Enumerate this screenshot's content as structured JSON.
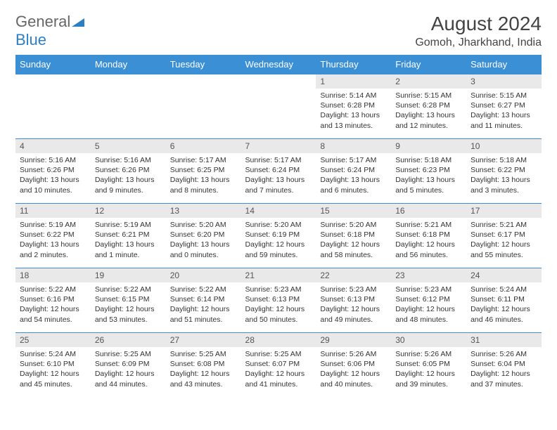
{
  "logo": {
    "text1": "General",
    "text2": "Blue"
  },
  "title": "August 2024",
  "location": "Gomoh, Jharkhand, India",
  "colors": {
    "header_bg": "#3b8fd4",
    "header_text": "#ffffff",
    "daynum_bg": "#e9e9e9",
    "border": "#3b8fd4",
    "logo_gray": "#666666",
    "logo_blue": "#2d7fc4"
  },
  "weekdays": [
    "Sunday",
    "Monday",
    "Tuesday",
    "Wednesday",
    "Thursday",
    "Friday",
    "Saturday"
  ],
  "font": {
    "title_size": 28,
    "location_size": 16,
    "header_size": 13,
    "cell_size": 10.5
  },
  "weeks": [
    [
      null,
      null,
      null,
      null,
      {
        "n": "1",
        "sr": "Sunrise: 5:14 AM",
        "ss": "Sunset: 6:28 PM",
        "dl": "Daylight: 13 hours and 13 minutes."
      },
      {
        "n": "2",
        "sr": "Sunrise: 5:15 AM",
        "ss": "Sunset: 6:28 PM",
        "dl": "Daylight: 13 hours and 12 minutes."
      },
      {
        "n": "3",
        "sr": "Sunrise: 5:15 AM",
        "ss": "Sunset: 6:27 PM",
        "dl": "Daylight: 13 hours and 11 minutes."
      }
    ],
    [
      {
        "n": "4",
        "sr": "Sunrise: 5:16 AM",
        "ss": "Sunset: 6:26 PM",
        "dl": "Daylight: 13 hours and 10 minutes."
      },
      {
        "n": "5",
        "sr": "Sunrise: 5:16 AM",
        "ss": "Sunset: 6:26 PM",
        "dl": "Daylight: 13 hours and 9 minutes."
      },
      {
        "n": "6",
        "sr": "Sunrise: 5:17 AM",
        "ss": "Sunset: 6:25 PM",
        "dl": "Daylight: 13 hours and 8 minutes."
      },
      {
        "n": "7",
        "sr": "Sunrise: 5:17 AM",
        "ss": "Sunset: 6:24 PM",
        "dl": "Daylight: 13 hours and 7 minutes."
      },
      {
        "n": "8",
        "sr": "Sunrise: 5:17 AM",
        "ss": "Sunset: 6:24 PM",
        "dl": "Daylight: 13 hours and 6 minutes."
      },
      {
        "n": "9",
        "sr": "Sunrise: 5:18 AM",
        "ss": "Sunset: 6:23 PM",
        "dl": "Daylight: 13 hours and 5 minutes."
      },
      {
        "n": "10",
        "sr": "Sunrise: 5:18 AM",
        "ss": "Sunset: 6:22 PM",
        "dl": "Daylight: 13 hours and 3 minutes."
      }
    ],
    [
      {
        "n": "11",
        "sr": "Sunrise: 5:19 AM",
        "ss": "Sunset: 6:22 PM",
        "dl": "Daylight: 13 hours and 2 minutes."
      },
      {
        "n": "12",
        "sr": "Sunrise: 5:19 AM",
        "ss": "Sunset: 6:21 PM",
        "dl": "Daylight: 13 hours and 1 minute."
      },
      {
        "n": "13",
        "sr": "Sunrise: 5:20 AM",
        "ss": "Sunset: 6:20 PM",
        "dl": "Daylight: 13 hours and 0 minutes."
      },
      {
        "n": "14",
        "sr": "Sunrise: 5:20 AM",
        "ss": "Sunset: 6:19 PM",
        "dl": "Daylight: 12 hours and 59 minutes."
      },
      {
        "n": "15",
        "sr": "Sunrise: 5:20 AM",
        "ss": "Sunset: 6:18 PM",
        "dl": "Daylight: 12 hours and 58 minutes."
      },
      {
        "n": "16",
        "sr": "Sunrise: 5:21 AM",
        "ss": "Sunset: 6:18 PM",
        "dl": "Daylight: 12 hours and 56 minutes."
      },
      {
        "n": "17",
        "sr": "Sunrise: 5:21 AM",
        "ss": "Sunset: 6:17 PM",
        "dl": "Daylight: 12 hours and 55 minutes."
      }
    ],
    [
      {
        "n": "18",
        "sr": "Sunrise: 5:22 AM",
        "ss": "Sunset: 6:16 PM",
        "dl": "Daylight: 12 hours and 54 minutes."
      },
      {
        "n": "19",
        "sr": "Sunrise: 5:22 AM",
        "ss": "Sunset: 6:15 PM",
        "dl": "Daylight: 12 hours and 53 minutes."
      },
      {
        "n": "20",
        "sr": "Sunrise: 5:22 AM",
        "ss": "Sunset: 6:14 PM",
        "dl": "Daylight: 12 hours and 51 minutes."
      },
      {
        "n": "21",
        "sr": "Sunrise: 5:23 AM",
        "ss": "Sunset: 6:13 PM",
        "dl": "Daylight: 12 hours and 50 minutes."
      },
      {
        "n": "22",
        "sr": "Sunrise: 5:23 AM",
        "ss": "Sunset: 6:13 PM",
        "dl": "Daylight: 12 hours and 49 minutes."
      },
      {
        "n": "23",
        "sr": "Sunrise: 5:23 AM",
        "ss": "Sunset: 6:12 PM",
        "dl": "Daylight: 12 hours and 48 minutes."
      },
      {
        "n": "24",
        "sr": "Sunrise: 5:24 AM",
        "ss": "Sunset: 6:11 PM",
        "dl": "Daylight: 12 hours and 46 minutes."
      }
    ],
    [
      {
        "n": "25",
        "sr": "Sunrise: 5:24 AM",
        "ss": "Sunset: 6:10 PM",
        "dl": "Daylight: 12 hours and 45 minutes."
      },
      {
        "n": "26",
        "sr": "Sunrise: 5:25 AM",
        "ss": "Sunset: 6:09 PM",
        "dl": "Daylight: 12 hours and 44 minutes."
      },
      {
        "n": "27",
        "sr": "Sunrise: 5:25 AM",
        "ss": "Sunset: 6:08 PM",
        "dl": "Daylight: 12 hours and 43 minutes."
      },
      {
        "n": "28",
        "sr": "Sunrise: 5:25 AM",
        "ss": "Sunset: 6:07 PM",
        "dl": "Daylight: 12 hours and 41 minutes."
      },
      {
        "n": "29",
        "sr": "Sunrise: 5:26 AM",
        "ss": "Sunset: 6:06 PM",
        "dl": "Daylight: 12 hours and 40 minutes."
      },
      {
        "n": "30",
        "sr": "Sunrise: 5:26 AM",
        "ss": "Sunset: 6:05 PM",
        "dl": "Daylight: 12 hours and 39 minutes."
      },
      {
        "n": "31",
        "sr": "Sunrise: 5:26 AM",
        "ss": "Sunset: 6:04 PM",
        "dl": "Daylight: 12 hours and 37 minutes."
      }
    ]
  ]
}
